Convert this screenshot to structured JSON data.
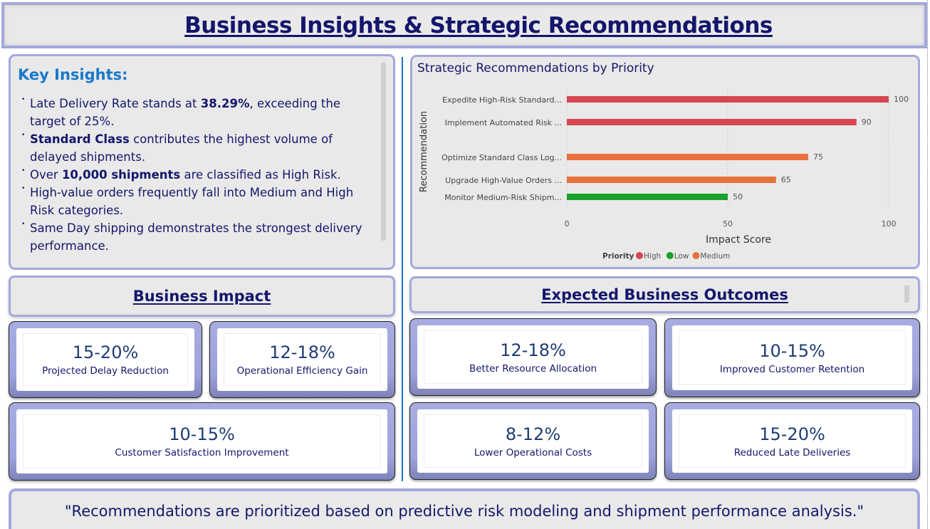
{
  "title": "Business Insights & Strategic Recommendations",
  "insights": {
    "heading": "Key Insights:",
    "items": [
      {
        "pre": "Late Delivery Rate stands at ",
        "bold": "38.29%",
        "post": ", exceeding the target of 25%."
      },
      {
        "pre": "",
        "bold": "Standard Class",
        "post": " contributes the highest volume of delayed shipments."
      },
      {
        "pre": "Over ",
        "bold": "10,000 shipments",
        "post": " are classified as High Risk."
      },
      {
        "pre": "High-value orders frequently fall into Medium and High Risk categories.",
        "bold": "",
        "post": ""
      },
      {
        "pre": "Same Day shipping demonstrates the strongest delivery performance.",
        "bold": "",
        "post": ""
      }
    ]
  },
  "chart_title": "Strategic Recommendations by Priority",
  "chart_data": {
    "type": "bar",
    "orientation": "horizontal",
    "title": "Strategic Recommendations by Priority",
    "xlabel": "Impact Score",
    "ylabel": "Recommendation",
    "categories": [
      "Expedite High-Risk Standard...",
      "Implement Automated Risk ...",
      "Optimize Standard Class Log...",
      "Upgrade High-Value Orders ...",
      "Monitor Medium-Risk Shipm..."
    ],
    "values": [
      100,
      90,
      75,
      65,
      50
    ],
    "priority": [
      "High",
      "High",
      "Medium",
      "Medium",
      "Low"
    ],
    "xlim": [
      0,
      100
    ],
    "xticks": [
      0,
      50,
      100
    ],
    "grid": true,
    "legend": {
      "title": "Priority",
      "placement": "bottom",
      "entries": [
        {
          "name": "High",
          "color": "#d64550"
        },
        {
          "name": "Low",
          "color": "#1aa12a"
        },
        {
          "name": "Medium",
          "color": "#e8703a"
        }
      ]
    }
  },
  "business_impact": {
    "heading": "Business Impact",
    "cards": [
      {
        "value": "15-20%",
        "label": "Projected Delay Reduction"
      },
      {
        "value": "12-18%",
        "label": "Operational Efficiency Gain"
      },
      {
        "value": "10-15%",
        "label": "Customer Satisfaction Improvement"
      }
    ]
  },
  "outcomes": {
    "heading": "Expected Business Outcomes",
    "cards": [
      {
        "value": "12-18%",
        "label": "Better Resource Allocation"
      },
      {
        "value": "10-15%",
        "label": "Improved Customer Retention"
      },
      {
        "value": "8-12%",
        "label": "Lower Operational Costs"
      },
      {
        "value": "15-20%",
        "label": "Reduced Late Deliveries"
      }
    ]
  },
  "quote": "\"Recommendations are prioritized based on predictive risk modeling and shipment performance analysis.\""
}
